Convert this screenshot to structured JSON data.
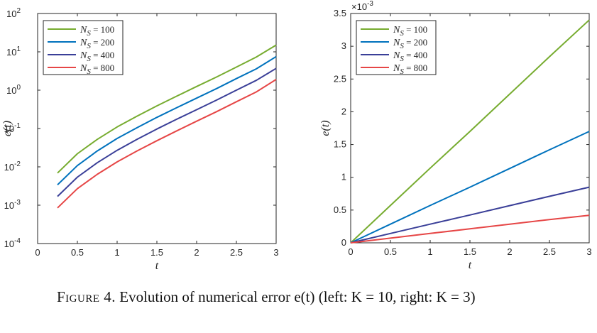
{
  "caption": {
    "label": "Figure 4.",
    "text": "Evolution of numerical error e(t) (left: K = 10, right: K = 3)"
  },
  "chart_data": [
    {
      "type": "line",
      "yscale": "log",
      "title": "",
      "xlabel": "t",
      "ylabel": "e(t)",
      "xlim": [
        0,
        3
      ],
      "ylim_exp": [
        -4,
        2
      ],
      "xticks": [
        0,
        0.5,
        1,
        1.5,
        2,
        2.5,
        3
      ],
      "xtick_labels": [
        "0",
        "0.5",
        "1",
        "1.5",
        "2",
        "2.5",
        "3"
      ],
      "ytick_base": "10",
      "ytick_exponents": [
        "-4",
        "-3",
        "-2",
        "-1",
        "0",
        "1",
        "2"
      ],
      "legend_location": "top-left",
      "legend_symbol": "N",
      "legend_subscript": "S",
      "x": [
        0.25,
        0.5,
        0.75,
        1.0,
        1.25,
        1.5,
        1.75,
        2.0,
        2.25,
        2.5,
        2.75,
        3.0
      ],
      "series": [
        {
          "name": "100",
          "label": "= 100",
          "color": "#77AC30",
          "values": [
            0.0069,
            0.022,
            0.052,
            0.11,
            0.21,
            0.39,
            0.7,
            1.25,
            2.2,
            4.0,
            7.3,
            15
          ]
        },
        {
          "name": "200",
          "label": "= 200",
          "color": "#0072BD",
          "values": [
            0.0034,
            0.0108,
            0.026,
            0.055,
            0.105,
            0.195,
            0.35,
            0.62,
            1.1,
            2.0,
            3.6,
            7.5
          ]
        },
        {
          "name": "400",
          "label": "= 400",
          "color": "#3A3F98",
          "values": [
            0.0017,
            0.0054,
            0.0128,
            0.027,
            0.052,
            0.097,
            0.175,
            0.31,
            0.55,
            1.0,
            1.8,
            3.7
          ]
        },
        {
          "name": "800",
          "label": "= 800",
          "color": "#E64646",
          "values": [
            0.00085,
            0.0027,
            0.0064,
            0.0135,
            0.026,
            0.048,
            0.087,
            0.155,
            0.275,
            0.5,
            0.9,
            1.9
          ]
        }
      ]
    },
    {
      "type": "line",
      "yscale": "linear",
      "title": "",
      "xlabel": "t",
      "ylabel": "e(t)",
      "xlim": [
        0,
        3
      ],
      "ylim": [
        0,
        3.5
      ],
      "y_multiplier": "×10",
      "y_multiplier_exp": "-3",
      "xticks": [
        0,
        0.5,
        1,
        1.5,
        2,
        2.5,
        3
      ],
      "xtick_labels": [
        "0",
        "0.5",
        "1",
        "1.5",
        "2",
        "2.5",
        "3"
      ],
      "yticks": [
        0,
        0.5,
        1,
        1.5,
        2,
        2.5,
        3,
        3.5
      ],
      "ytick_labels": [
        "0",
        "0.5",
        "1",
        "1.5",
        "2",
        "2.5",
        "3",
        "3.5"
      ],
      "legend_location": "top-left",
      "legend_symbol": "N",
      "legend_subscript": "S",
      "x": [
        0,
        0.5,
        1.0,
        1.5,
        2.0,
        2.5,
        3.0
      ],
      "series": [
        {
          "name": "100",
          "label": "= 100",
          "color": "#77AC30",
          "values": [
            0,
            0.57,
            1.14,
            1.7,
            2.27,
            2.84,
            3.4
          ]
        },
        {
          "name": "200",
          "label": "= 200",
          "color": "#0072BD",
          "values": [
            0,
            0.285,
            0.57,
            0.85,
            1.135,
            1.42,
            1.7
          ]
        },
        {
          "name": "400",
          "label": "= 400",
          "color": "#3A3F98",
          "values": [
            0,
            0.143,
            0.285,
            0.425,
            0.568,
            0.71,
            0.85
          ]
        },
        {
          "name": "800",
          "label": "= 800",
          "color": "#E64646",
          "values": [
            0,
            0.072,
            0.143,
            0.213,
            0.284,
            0.355,
            0.42
          ]
        }
      ]
    }
  ]
}
